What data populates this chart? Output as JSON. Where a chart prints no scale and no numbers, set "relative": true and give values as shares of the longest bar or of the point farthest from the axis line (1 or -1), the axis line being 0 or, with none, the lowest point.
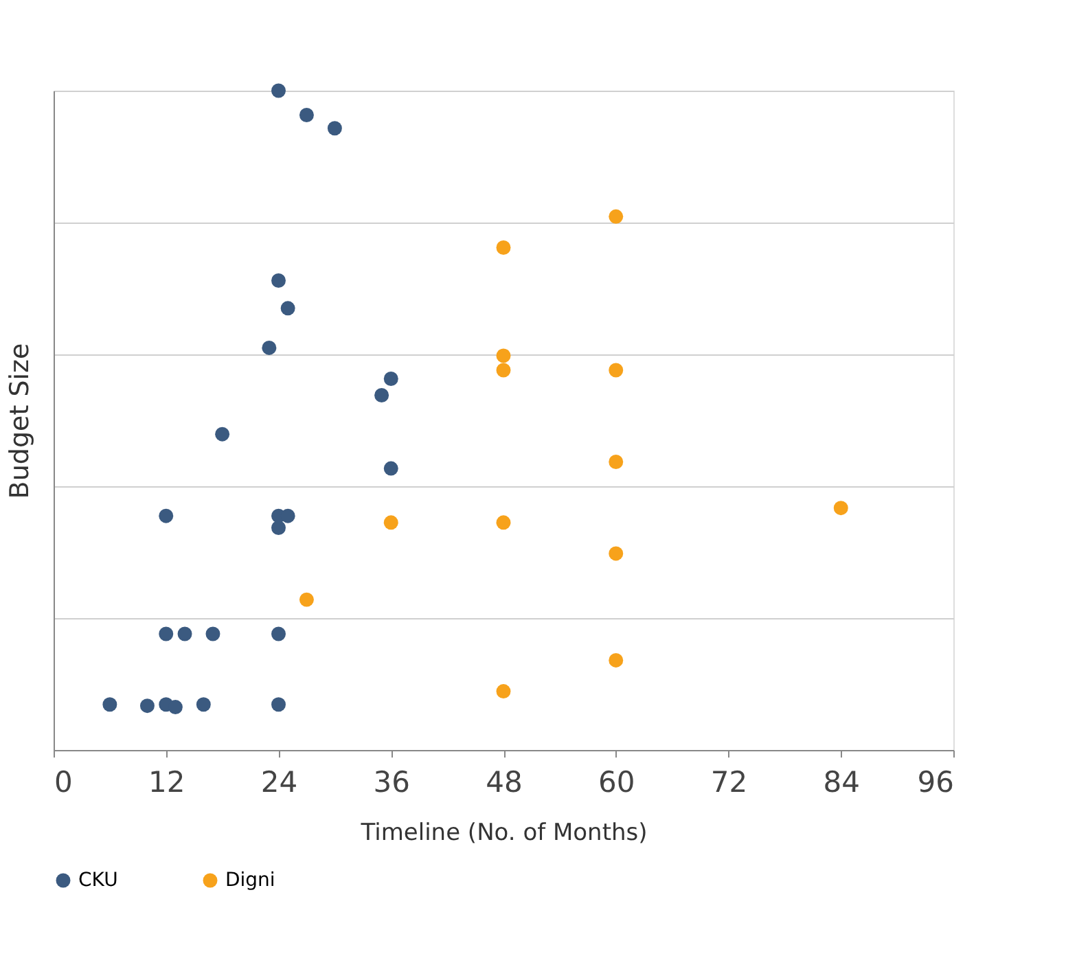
{
  "chart_data": {
    "type": "scatter",
    "relative": true,
    "xlabel": "Timeline (No. of Months)",
    "ylabel": "Budget Size",
    "xlim": [
      0,
      96
    ],
    "xticks": [
      0,
      12,
      24,
      36,
      48,
      60,
      72,
      84,
      96
    ],
    "grid": "y",
    "legend": "bottom",
    "marker": "circle",
    "series": [
      {
        "name": "CKU",
        "color": "#3b5a80",
        "x": [
          24,
          27,
          30,
          24,
          25,
          23,
          36,
          35,
          18,
          36,
          12,
          24,
          25,
          24,
          12,
          14,
          17,
          24,
          6,
          10,
          12,
          13,
          16,
          24
        ],
        "values": [
          1.0,
          0.963,
          0.943,
          0.712,
          0.67,
          0.61,
          0.563,
          0.538,
          0.479,
          0.427,
          0.355,
          0.355,
          0.355,
          0.337,
          0.176,
          0.176,
          0.176,
          0.176,
          0.069,
          0.067,
          0.069,
          0.065,
          0.069,
          0.069
        ]
      },
      {
        "name": "Digni",
        "color": "#f7a21b",
        "x": [
          60,
          48,
          48,
          48,
          60,
          60,
          84,
          36,
          48,
          60,
          27,
          60,
          48
        ],
        "values": [
          0.809,
          0.762,
          0.598,
          0.576,
          0.576,
          0.437,
          0.367,
          0.345,
          0.345,
          0.298,
          0.228,
          0.136,
          0.089
        ]
      }
    ]
  }
}
